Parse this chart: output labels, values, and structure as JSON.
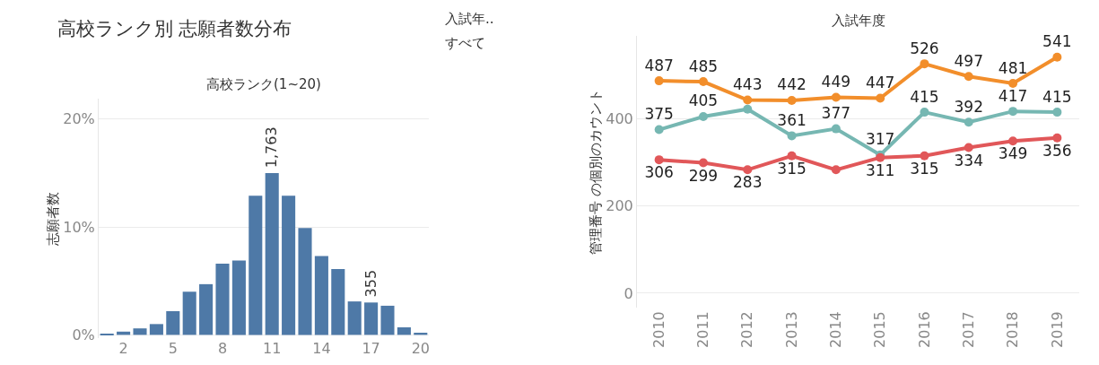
{
  "chart_data": [
    {
      "type": "bar",
      "title": "高校ランク別 志願者数分布",
      "xlabel": "高校ランク(1~20)",
      "ylabel": "志願者数",
      "categories": [
        null,
        "2",
        null,
        null,
        "5",
        null,
        null,
        "8",
        null,
        null,
        "11",
        null,
        null,
        "14",
        null,
        null,
        "17",
        null,
        null,
        "20"
      ],
      "values": [
        0.1,
        0.3,
        0.6,
        1.0,
        2.2,
        4.0,
        4.7,
        6.6,
        6.9,
        12.9,
        15.0,
        12.9,
        9.9,
        7.3,
        6.1,
        3.1,
        3.0,
        2.7,
        0.7,
        0.2
      ],
      "annotations": [
        {
          "text": "1,763",
          "x": "11",
          "y": 15.0
        },
        {
          "text": "355",
          "x": "17",
          "y": 3.0
        }
      ],
      "color": "#4e79a7",
      "ylim": [
        -0.3,
        21.9
      ],
      "yticks": [
        {
          "value": 0,
          "label": "0%"
        },
        {
          "value": 10,
          "label": "10%"
        },
        {
          "value": 20,
          "label": "20%"
        }
      ],
      "grid": "y"
    },
    {
      "type": "other",
      "title": "入試年..",
      "annotations": [
        "すべて"
      ]
    },
    {
      "type": "line",
      "xlabel": "入試年度",
      "ylabel": "管理番号 の個別のカウント",
      "categories": [
        "2010",
        "2011",
        "2012",
        "2013",
        "2014",
        "2015",
        "2016",
        "2017",
        "2018",
        "2019"
      ],
      "series": [
        {
          "color": "#f28e2b",
          "values": [
            487,
            485,
            443,
            442,
            449,
            447,
            526,
            497,
            481,
            541
          ],
          "value_labels": [
            "487",
            "485",
            "443",
            "442",
            "449",
            "447",
            "526",
            "497",
            "481",
            "541"
          ]
        },
        {
          "color": "#76b7b2",
          "values": [
            375,
            405,
            422,
            361,
            377,
            317,
            415,
            392,
            417,
            415
          ],
          "value_labels": [
            "375",
            "405",
            null,
            "361",
            "377",
            "317",
            "415",
            "392",
            "417",
            "415"
          ]
        },
        {
          "color": "#e15759",
          "values": [
            306,
            299,
            283,
            315,
            283,
            311,
            315,
            334,
            349,
            356
          ],
          "value_labels": [
            "306",
            "299",
            "283",
            "315",
            null,
            "311",
            "315",
            "334",
            "349",
            "356"
          ]
        }
      ],
      "ylim": [
        -33,
        590
      ],
      "yticks": [
        0,
        200,
        400
      ],
      "grid": "y",
      "marker": "circle",
      "line_style": "solid"
    }
  ]
}
